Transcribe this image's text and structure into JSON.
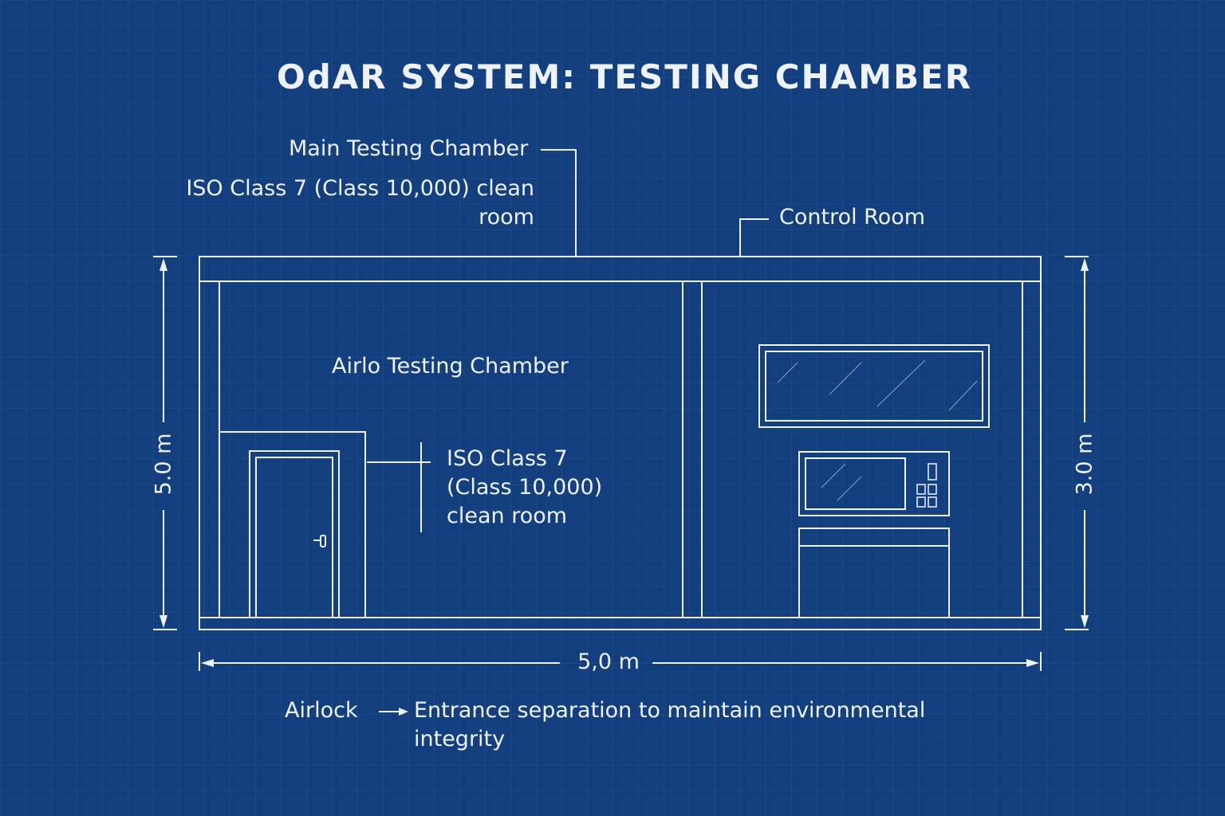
{
  "diagram": {
    "title": "OdAR SYSTEM: TESTING CHAMBER",
    "labels": {
      "main_chamber": "Main Testing Chamber",
      "main_chamber_note_line1": "ISO Class 7 (Class 10,000) clean",
      "main_chamber_note_line2": "room",
      "control_room": "Control Room",
      "airlo_chamber": "Airlo Testing Chamber",
      "airlock_note_line1": "ISO Class 7",
      "airlock_note_line2": "(Class 10,000)",
      "airlock_note_line3": "clean room",
      "airlock": "Airlock",
      "airlock_desc_line1": "Entrance separation to maintain environmental",
      "airlock_desc_line2": "integrity"
    },
    "dimensions": {
      "left_height": "5.0 m",
      "right_height": "3.0 m",
      "width": "5,0 m"
    },
    "colors": {
      "background": "#133f7f",
      "lines": "#eef3fb"
    }
  }
}
